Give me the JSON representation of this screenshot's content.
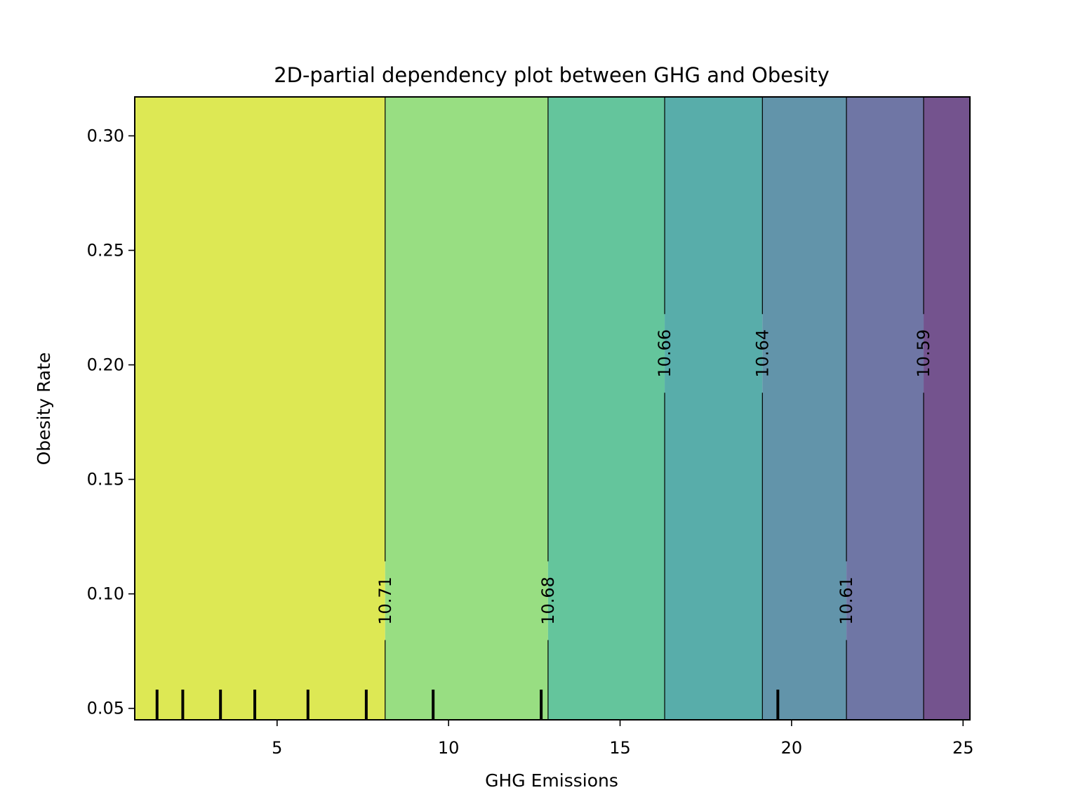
{
  "chart_data": {
    "type": "heatmap",
    "title": "2D-partial dependency plot between GHG and Obesity",
    "xlabel": "GHG Emissions",
    "ylabel": "Obesity Rate",
    "xlim": [
      0.85,
      25.2
    ],
    "ylim": [
      0.045,
      0.317
    ],
    "xticks": [
      5,
      10,
      15,
      20,
      25
    ],
    "xtick_labels": [
      "5",
      "10",
      "15",
      "20",
      "25"
    ],
    "yticks": [
      0.05,
      0.1,
      0.15,
      0.2,
      0.25,
      0.3
    ],
    "ytick_labels": [
      "0.05",
      "0.10",
      "0.15",
      "0.20",
      "0.25",
      "0.30"
    ],
    "bands": [
      {
        "x0": 0.85,
        "x1": 8.15,
        "color": "#dde854"
      },
      {
        "x0": 8.15,
        "x1": 12.9,
        "color": "#98de82"
      },
      {
        "x0": 12.9,
        "x1": 16.3,
        "color": "#64c59c"
      },
      {
        "x0": 16.3,
        "x1": 19.15,
        "color": "#58adaa"
      },
      {
        "x0": 19.15,
        "x1": 21.6,
        "color": "#6294aa"
      },
      {
        "x0": 21.6,
        "x1": 23.85,
        "color": "#6f76a5"
      },
      {
        "x0": 23.85,
        "x1": 25.2,
        "color": "#74538e"
      }
    ],
    "contours": [
      {
        "x": 8.15,
        "label": "10.71",
        "label_y": 0.097
      },
      {
        "x": 12.9,
        "label": "10.68",
        "label_y": 0.097
      },
      {
        "x": 16.3,
        "label": "10.66",
        "label_y": 0.205
      },
      {
        "x": 19.15,
        "label": "10.64",
        "label_y": 0.205
      },
      {
        "x": 21.6,
        "label": "10.61",
        "label_y": 0.097
      },
      {
        "x": 23.85,
        "label": "10.59",
        "label_y": 0.205
      }
    ],
    "rug_x": [
      1.5,
      2.25,
      3.35,
      4.35,
      5.9,
      7.6,
      9.55,
      12.7,
      19.6
    ],
    "grid": false,
    "legend": "none"
  }
}
